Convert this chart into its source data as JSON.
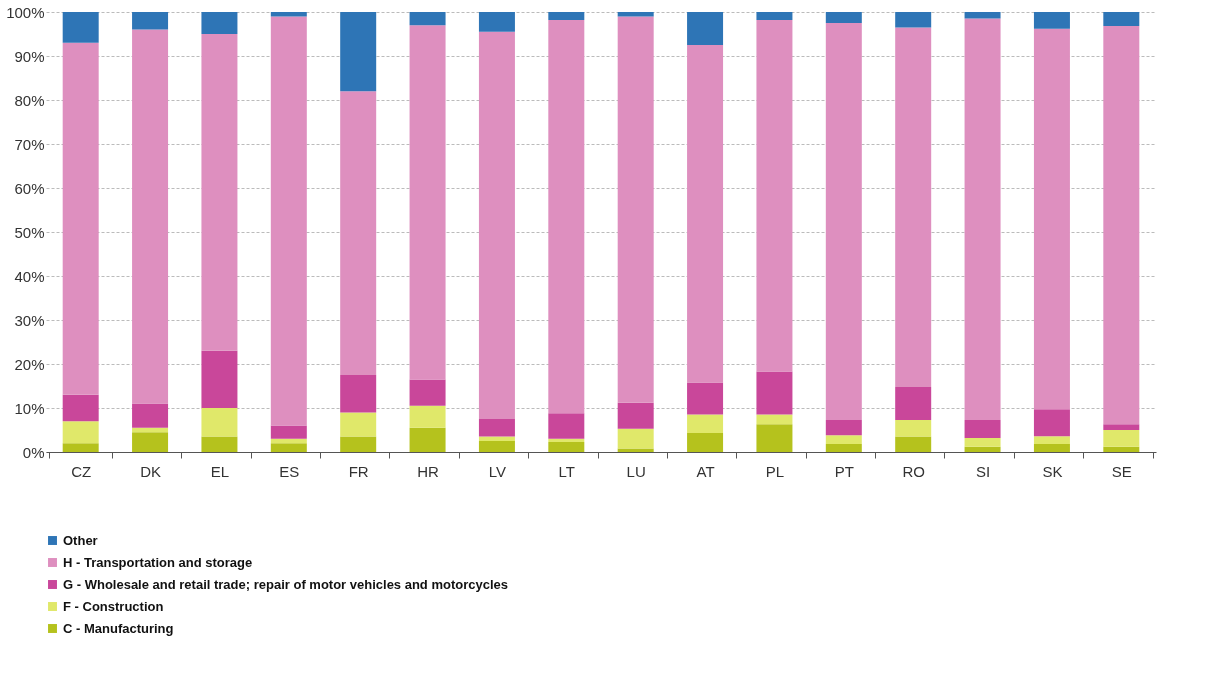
{
  "chart_data": {
    "type": "bar",
    "stacked": true,
    "categories": [
      "CZ",
      "DK",
      "EL",
      "ES",
      "FR",
      "HR",
      "LV",
      "LT",
      "LU",
      "AT",
      "PL",
      "PT",
      "RO",
      "SI",
      "SK",
      "SE"
    ],
    "series": [
      {
        "name": "C - Manufacturing",
        "color": "#b5c21d",
        "values": [
          2,
          4.5,
          3.5,
          2,
          3.5,
          5.5,
          2.5,
          2.3,
          0.8,
          4.3,
          6.3,
          1.8,
          3.5,
          1.2,
          1.8,
          1.2
        ]
      },
      {
        "name": "F - Construction",
        "color": "#e0e86a",
        "values": [
          5,
          1,
          6.5,
          1,
          5.5,
          5,
          1,
          0.7,
          4.5,
          4.2,
          2.2,
          2,
          3.8,
          2,
          1.8,
          3.8
        ]
      },
      {
        "name": "G - Wholesale and retail trade; repair of motor vehicles and motorcycles",
        "color": "#c9479a",
        "values": [
          6,
          5.5,
          13,
          3,
          8.5,
          6,
          4,
          5.8,
          5.9,
          7.3,
          9.8,
          3.5,
          7.5,
          4.1,
          6.1,
          1.3
        ]
      },
      {
        "name": "H - Transportation and storage",
        "color": "#de8fbf",
        "values": [
          80,
          85,
          72,
          93,
          64.5,
          80.5,
          88,
          89.4,
          87.8,
          76.7,
          79.9,
          90.2,
          81.7,
          91.2,
          86.5,
          90.5
        ]
      },
      {
        "name": "Other",
        "color": "#2e75b6",
        "values": [
          7,
          4,
          5,
          1,
          18,
          3,
          4.5,
          1.8,
          1,
          7.5,
          1.8,
          2.5,
          3.5,
          1.5,
          3.8,
          3.2
        ]
      }
    ],
    "ylim": [
      0,
      100
    ],
    "yticks": [
      {
        "value": 0,
        "label": "0%"
      },
      {
        "value": 10,
        "label": "10%"
      },
      {
        "value": 20,
        "label": "20%"
      },
      {
        "value": 30,
        "label": "30%"
      },
      {
        "value": 40,
        "label": "40%"
      },
      {
        "value": 50,
        "label": "50%"
      },
      {
        "value": 60,
        "label": "60%"
      },
      {
        "value": 70,
        "label": "70%"
      },
      {
        "value": 80,
        "label": "80%"
      },
      {
        "value": 90,
        "label": "90%"
      },
      {
        "value": 100,
        "label": "100%"
      }
    ],
    "grid": "y",
    "legend": "bottom"
  }
}
